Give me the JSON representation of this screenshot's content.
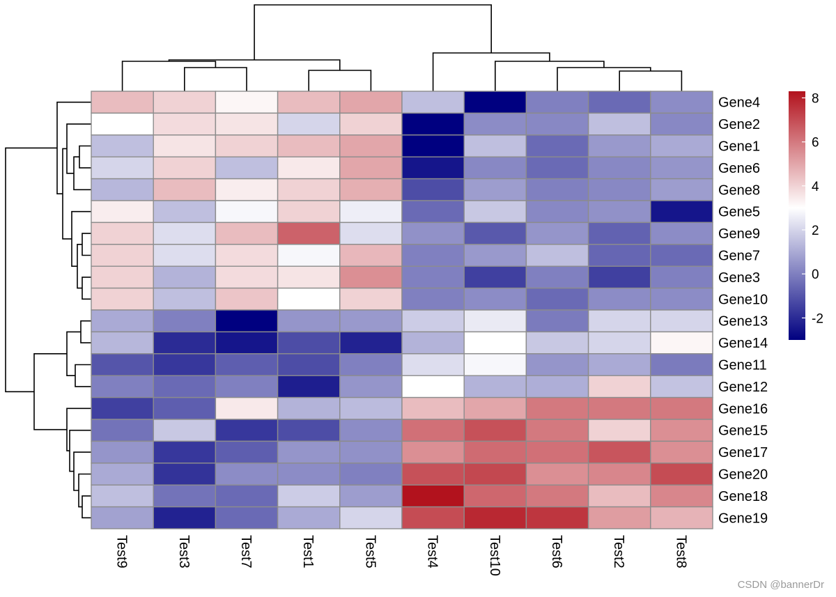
{
  "chart_data": {
    "type": "heatmap",
    "title": "",
    "columns": [
      "Test9",
      "Test3",
      "Test7",
      "Test1",
      "Test5",
      "Test4",
      "Test10",
      "Test6",
      "Test2",
      "Test8"
    ],
    "rows": [
      "Gene4",
      "Gene2",
      "Gene1",
      "Gene6",
      "Gene8",
      "Gene5",
      "Gene9",
      "Gene7",
      "Gene3",
      "Gene10",
      "Gene13",
      "Gene14",
      "Gene11",
      "Gene12",
      "Gene16",
      "Gene15",
      "Gene17",
      "Gene20",
      "Gene18",
      "Gene19"
    ],
    "values": [
      [
        4.5,
        4.0,
        3.2,
        4.5,
        5.0,
        1.5,
        -3.0,
        0.0,
        -0.5,
        0.3
      ],
      [
        3.0,
        3.8,
        3.6,
        2.0,
        4.0,
        -3.0,
        0.3,
        0.2,
        1.5,
        0.2
      ],
      [
        1.5,
        3.6,
        4.0,
        4.5,
        5.0,
        -3.0,
        1.5,
        -0.5,
        0.6,
        1.0
      ],
      [
        2.0,
        4.0,
        1.5,
        3.5,
        5.0,
        -2.5,
        0.2,
        -0.5,
        0.2,
        0.5
      ],
      [
        1.3,
        4.5,
        3.4,
        4.0,
        4.8,
        -1.2,
        0.7,
        0.0,
        0.2,
        0.7
      ],
      [
        3.4,
        1.5,
        2.8,
        4.0,
        2.6,
        -0.5,
        1.7,
        0.2,
        0.4,
        -2.5
      ],
      [
        4.0,
        2.2,
        4.5,
        6.5,
        2.2,
        0.4,
        -0.9,
        0.5,
        -0.7,
        0.3
      ],
      [
        4.0,
        2.2,
        3.8,
        2.8,
        4.6,
        0.0,
        0.6,
        1.5,
        -0.6,
        -0.5
      ],
      [
        4.0,
        1.2,
        3.8,
        3.6,
        5.5,
        0.0,
        -1.5,
        0.0,
        -1.5,
        0.0
      ],
      [
        4.0,
        1.5,
        4.3,
        3.0,
        4.0,
        0.0,
        0.3,
        -0.5,
        0.3,
        0.3
      ],
      [
        1.0,
        0.0,
        -3.0,
        0.5,
        0.6,
        1.8,
        2.5,
        -0.1,
        2.0,
        2.0
      ],
      [
        1.3,
        -2.0,
        -2.5,
        -1.2,
        -2.2,
        1.2,
        3.0,
        1.7,
        2.0,
        3.2
      ],
      [
        -1.0,
        -1.7,
        -0.8,
        -1.2,
        0.0,
        2.2,
        2.8,
        0.5,
        1.0,
        -0.1
      ],
      [
        0.0,
        -0.5,
        0.0,
        -2.3,
        0.5,
        3.0,
        1.2,
        1.1,
        4.0,
        1.6
      ],
      [
        -1.5,
        -0.8,
        3.5,
        1.2,
        1.4,
        4.5,
        5.0,
        6.0,
        6.0,
        6.0
      ],
      [
        -0.3,
        1.7,
        -1.7,
        -1.2,
        0.3,
        6.2,
        6.9,
        6.0,
        4.0,
        5.5
      ],
      [
        0.5,
        -1.7,
        -0.8,
        0.5,
        0.4,
        5.5,
        6.3,
        6.2,
        6.8,
        5.5
      ],
      [
        1.0,
        -1.8,
        0.3,
        0.3,
        0.0,
        6.9,
        7.1,
        5.5,
        5.7,
        7.0
      ],
      [
        1.5,
        -0.3,
        -0.5,
        1.8,
        0.7,
        8.3,
        6.4,
        6.0,
        4.5,
        5.7
      ],
      [
        0.8,
        -2.2,
        -0.5,
        1.0,
        2.0,
        7.0,
        7.8,
        7.5,
        5.2,
        4.7
      ]
    ],
    "colorbar": {
      "min": -3.0,
      "max": 8.3,
      "mid": 3.0,
      "ticks": [
        -2,
        0,
        2,
        4,
        6,
        8
      ],
      "tick_labels": [
        "-2",
        "0",
        "2",
        "4",
        "6",
        "8"
      ],
      "colors": {
        "low": "#000080",
        "mid": "#ffffff",
        "high": "#b2121d"
      }
    },
    "cell_border_color": "#8c8c8c",
    "dendrogram_color": "#000000"
  },
  "footer": {
    "watermark": "CSDN @bannerDr"
  }
}
